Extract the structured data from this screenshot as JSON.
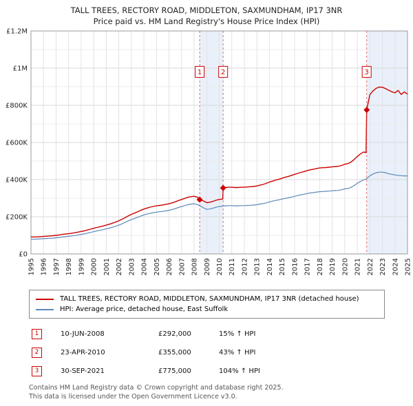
{
  "title": {
    "line1": "TALL TREES, RECTORY ROAD, MIDDLETON, SAXMUNDHAM, IP17 3NR",
    "line2": "Price paid vs. HM Land Registry's House Price Index (HPI)"
  },
  "chart_data": {
    "type": "line",
    "title": "Price paid vs. HM Land Registry's House Price Index (HPI)",
    "x_min": 1995,
    "x_max": 2025,
    "y_min": 0,
    "y_max": 1200000,
    "y_major_step": 200000,
    "y_minor_step": 100000,
    "grid": true,
    "legend_position": "bottom",
    "band_color": "#e3ecf7",
    "sale_line_color": "#dd4444",
    "marker_color": "#cc0000",
    "flag_y": 980000,
    "bands": [
      [
        2008.44,
        2010.31
      ],
      [
        2021.75,
        2025
      ]
    ],
    "x_ticks": [
      1995,
      1996,
      1997,
      1998,
      1999,
      2000,
      2001,
      2002,
      2003,
      2004,
      2005,
      2006,
      2007,
      2008,
      2009,
      2010,
      2011,
      2012,
      2013,
      2014,
      2015,
      2016,
      2017,
      2018,
      2019,
      2020,
      2021,
      2022,
      2023,
      2024,
      2025
    ],
    "y_ticks": [
      {
        "v": 0,
        "label": "£0"
      },
      {
        "v": 200000,
        "label": "£200K"
      },
      {
        "v": 400000,
        "label": "£400K"
      },
      {
        "v": 600000,
        "label": "£600K"
      },
      {
        "v": 800000,
        "label": "£800K"
      },
      {
        "v": 1000000,
        "label": "£1M"
      },
      {
        "v": 1200000,
        "label": "£1.2M"
      }
    ],
    "series": [
      {
        "id": "price-paid-line",
        "name": "TALL TREES, RECTORY ROAD, MIDDLETON, SAXMUNDHAM, IP17 3NR (detached house)",
        "color": "#cc0000",
        "width": 1.4,
        "points": [
          [
            1995.0,
            92000
          ],
          [
            1995.25,
            91000
          ],
          [
            1995.5,
            92000
          ],
          [
            1995.75,
            93000
          ],
          [
            1996.0,
            94000
          ],
          [
            1996.25,
            95500
          ],
          [
            1996.5,
            96500
          ],
          [
            1996.75,
            98000
          ],
          [
            1997.0,
            100000
          ],
          [
            1997.25,
            102000
          ],
          [
            1997.5,
            105000
          ],
          [
            1997.75,
            107000
          ],
          [
            1998.0,
            109000
          ],
          [
            1998.25,
            111500
          ],
          [
            1998.5,
            114000
          ],
          [
            1998.75,
            117500
          ],
          [
            1999.0,
            121000
          ],
          [
            1999.25,
            124000
          ],
          [
            1999.5,
            129000
          ],
          [
            1999.75,
            133500
          ],
          [
            2000.0,
            138000
          ],
          [
            2000.25,
            142500
          ],
          [
            2000.5,
            146000
          ],
          [
            2000.75,
            150500
          ],
          [
            2001.0,
            155000
          ],
          [
            2001.25,
            160000
          ],
          [
            2001.5,
            165500
          ],
          [
            2001.75,
            171500
          ],
          [
            2002.0,
            178000
          ],
          [
            2002.25,
            186500
          ],
          [
            2002.5,
            195500
          ],
          [
            2002.75,
            204500
          ],
          [
            2003.0,
            213000
          ],
          [
            2003.25,
            219500
          ],
          [
            2003.5,
            226500
          ],
          [
            2003.75,
            234500
          ],
          [
            2004.0,
            241500
          ],
          [
            2004.25,
            247000
          ],
          [
            2004.5,
            252000
          ],
          [
            2004.75,
            255500
          ],
          [
            2005.0,
            259000
          ],
          [
            2005.25,
            261000
          ],
          [
            2005.5,
            263500
          ],
          [
            2005.75,
            267000
          ],
          [
            2006.0,
            270000
          ],
          [
            2006.25,
            275000
          ],
          [
            2006.5,
            280500
          ],
          [
            2006.75,
            287500
          ],
          [
            2007.0,
            293000
          ],
          [
            2007.25,
            299000
          ],
          [
            2007.5,
            305000
          ],
          [
            2007.75,
            308000
          ],
          [
            2008.0,
            310500
          ],
          [
            2008.25,
            306000
          ],
          [
            2008.44,
            292000
          ],
          [
            2008.75,
            285000
          ],
          [
            2009.0,
            276000
          ],
          [
            2009.25,
            278000
          ],
          [
            2009.5,
            283000
          ],
          [
            2009.75,
            289000
          ],
          [
            2010.0,
            293500
          ],
          [
            2010.28,
            295500
          ],
          [
            2010.31,
            355000
          ],
          [
            2010.5,
            357500
          ],
          [
            2010.75,
            359000
          ],
          [
            2011.0,
            359000
          ],
          [
            2011.25,
            357500
          ],
          [
            2011.5,
            357500
          ],
          [
            2011.75,
            359000
          ],
          [
            2012.0,
            359000
          ],
          [
            2012.25,
            360500
          ],
          [
            2012.5,
            362000
          ],
          [
            2012.75,
            363000
          ],
          [
            2013.0,
            366000
          ],
          [
            2013.25,
            370000
          ],
          [
            2013.5,
            374000
          ],
          [
            2013.75,
            380000
          ],
          [
            2014.0,
            386500
          ],
          [
            2014.25,
            392000
          ],
          [
            2014.5,
            397500
          ],
          [
            2014.75,
            401500
          ],
          [
            2015.0,
            407000
          ],
          [
            2015.25,
            412500
          ],
          [
            2015.5,
            417000
          ],
          [
            2015.75,
            422500
          ],
          [
            2016.0,
            428000
          ],
          [
            2016.25,
            433500
          ],
          [
            2016.5,
            439000
          ],
          [
            2016.75,
            443000
          ],
          [
            2017.0,
            448500
          ],
          [
            2017.25,
            452500
          ],
          [
            2017.5,
            455500
          ],
          [
            2017.75,
            459500
          ],
          [
            2018.0,
            462500
          ],
          [
            2018.25,
            464000
          ],
          [
            2018.5,
            465000
          ],
          [
            2018.75,
            466500
          ],
          [
            2019.0,
            469000
          ],
          [
            2019.25,
            470500
          ],
          [
            2019.5,
            472000
          ],
          [
            2019.75,
            476000
          ],
          [
            2020.0,
            483000
          ],
          [
            2020.25,
            486000
          ],
          [
            2020.5,
            494000
          ],
          [
            2020.75,
            508000
          ],
          [
            2021.0,
            524500
          ],
          [
            2021.25,
            538000
          ],
          [
            2021.5,
            549000
          ],
          [
            2021.7,
            545000
          ],
          [
            2021.75,
            775000
          ],
          [
            2022.0,
            857000
          ],
          [
            2022.25,
            877000
          ],
          [
            2022.5,
            891000
          ],
          [
            2022.75,
            898000
          ],
          [
            2023.0,
            897000
          ],
          [
            2023.25,
            890000
          ],
          [
            2023.5,
            881000
          ],
          [
            2023.75,
            873000
          ],
          [
            2024.0,
            867000
          ],
          [
            2024.25,
            880000
          ],
          [
            2024.5,
            858000
          ],
          [
            2024.75,
            872000
          ],
          [
            2025.0,
            860000
          ]
        ]
      },
      {
        "id": "hpi-line",
        "name": "HPI: Average price, detached house, East Suffolk",
        "color": "#5b87b7",
        "width": 1.2,
        "x_start": 1995,
        "x_step": 0.25,
        "values": [
          80000,
          79000,
          80000,
          81000,
          82000,
          83000,
          84000,
          85000,
          87000,
          89000,
          91000,
          93000,
          95000,
          97000,
          99000,
          102000,
          105000,
          108000,
          112000,
          116000,
          120000,
          124000,
          127000,
          131000,
          135000,
          139000,
          144000,
          149000,
          155000,
          162000,
          170000,
          178000,
          185000,
          191000,
          197000,
          204000,
          210000,
          215000,
          219000,
          222000,
          225000,
          227000,
          229000,
          232000,
          235000,
          239000,
          244000,
          250000,
          255000,
          260000,
          265000,
          268000,
          270000,
          266000,
          258000,
          248000,
          240000,
          242000,
          246000,
          251000,
          255000,
          257000,
          259000,
          260000,
          260000,
          259000,
          259000,
          260000,
          260000,
          261000,
          262000,
          263000,
          265000,
          268000,
          271000,
          275000,
          280000,
          284000,
          288000,
          291000,
          295000,
          299000,
          302000,
          306000,
          310000,
          314000,
          318000,
          321000,
          325000,
          328000,
          330000,
          333000,
          335000,
          336000,
          337000,
          338000,
          340000,
          341000,
          342000,
          345000,
          350000,
          352000,
          358000,
          368000,
          380000,
          390000,
          398000,
          405000,
          420000,
          430000,
          437000,
          440000,
          440000,
          437000,
          432000,
          428000,
          425000,
          423000,
          421000,
          420000,
          420000
        ]
      }
    ],
    "sales": [
      {
        "n": 1,
        "x": 2008.44,
        "y": 292000,
        "date": "10-JUN-2008",
        "price": "£292,000",
        "hpi": "15% ↑ HPI"
      },
      {
        "n": 2,
        "x": 2010.31,
        "y": 355000,
        "date": "23-APR-2010",
        "price": "£355,000",
        "hpi": "43% ↑ HPI"
      },
      {
        "n": 3,
        "x": 2021.75,
        "y": 775000,
        "date": "30-SEP-2021",
        "price": "£775,000",
        "hpi": "104% ↑ HPI"
      }
    ]
  },
  "footer": {
    "line1": "Contains HM Land Registry data © Crown copyright and database right 2025.",
    "line2": "This data is licensed under the Open Government Licence v3.0."
  }
}
